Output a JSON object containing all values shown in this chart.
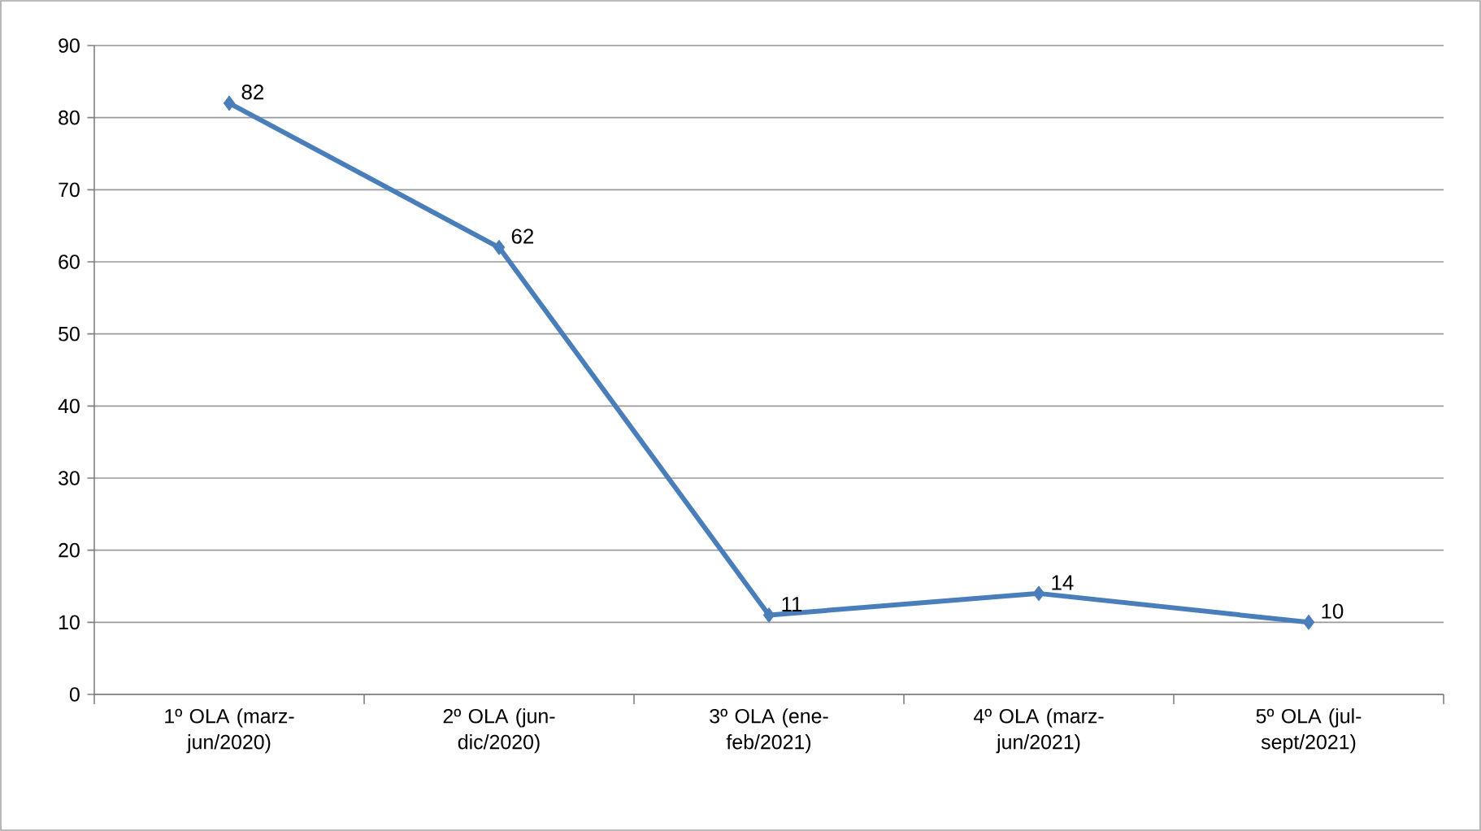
{
  "chart_data": {
    "type": "line",
    "categories": [
      "1º OLA (marz-jun/2020)",
      "2º OLA (jun-dic/2020)",
      "3º OLA (ene-feb/2021)",
      "4º OLA (marz-jun/2021)",
      "5º OLA (jul-sept/2021)"
    ],
    "series": [
      {
        "color": "#4a7ebb",
        "values": [
          82,
          62,
          11,
          14,
          10
        ]
      }
    ],
    "ylim": [
      0,
      90
    ],
    "yticks": [
      0,
      10,
      20,
      30,
      40,
      50,
      60,
      70,
      80,
      90
    ],
    "grid": "y",
    "marker": "diamond",
    "line_style": "solid",
    "data_labels": true
  }
}
